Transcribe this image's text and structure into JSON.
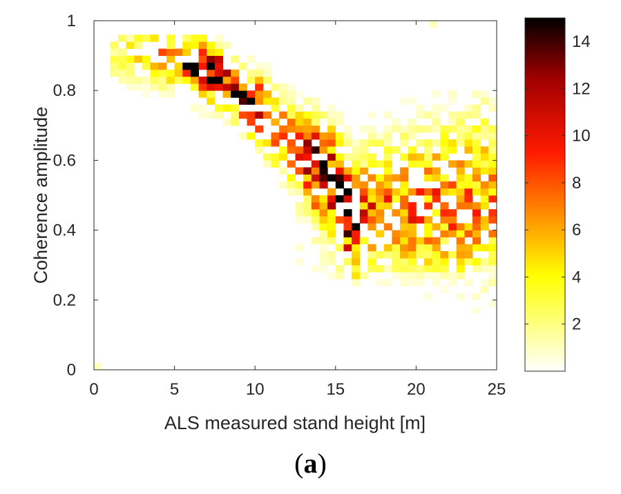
{
  "chart_data": {
    "type": "heatmap",
    "title": "",
    "xlabel": "ALS measured stand height [m]",
    "ylabel": "Coherence amplitude",
    "xlim": [
      0,
      25
    ],
    "ylim": [
      0,
      1
    ],
    "xticks": [
      "0",
      "5",
      "10",
      "15",
      "20",
      "25"
    ],
    "yticks": [
      "0",
      "0.2",
      "0.4",
      "0.6",
      "0.8",
      "1"
    ],
    "colormap": "hot (reversed)",
    "colorbar": {
      "range": [
        0,
        15
      ],
      "ticks": [
        "2",
        "4",
        "6",
        "8",
        "10",
        "12",
        "14"
      ]
    },
    "grid": false,
    "bins": {
      "x_width": 0.5,
      "y_width": 0.02
    },
    "ridge_points": [
      {
        "x": 1.5,
        "y": 0.91,
        "peak": 3
      },
      {
        "x": 3.5,
        "y": 0.9,
        "peak": 5
      },
      {
        "x": 5.0,
        "y": 0.89,
        "peak": 8
      },
      {
        "x": 6.3,
        "y": 0.87,
        "peak": 15
      },
      {
        "x": 7.5,
        "y": 0.85,
        "peak": 14
      },
      {
        "x": 8.5,
        "y": 0.81,
        "peak": 11
      },
      {
        "x": 9.5,
        "y": 0.77,
        "peak": 13
      },
      {
        "x": 10.5,
        "y": 0.74,
        "peak": 11
      },
      {
        "x": 11.0,
        "y": 0.7,
        "peak": 9
      },
      {
        "x": 12.0,
        "y": 0.66,
        "peak": 7
      },
      {
        "x": 13.0,
        "y": 0.62,
        "peak": 10
      },
      {
        "x": 13.8,
        "y": 0.58,
        "peak": 13
      },
      {
        "x": 14.8,
        "y": 0.55,
        "peak": 12
      },
      {
        "x": 15.3,
        "y": 0.5,
        "peak": 14
      },
      {
        "x": 15.8,
        "y": 0.45,
        "peak": 12
      },
      {
        "x": 16.3,
        "y": 0.42,
        "peak": 9
      },
      {
        "x": 17.0,
        "y": 0.48,
        "peak": 7
      }
    ]
  },
  "caption": {
    "open": "(",
    "letter": "a",
    "close": ")"
  }
}
